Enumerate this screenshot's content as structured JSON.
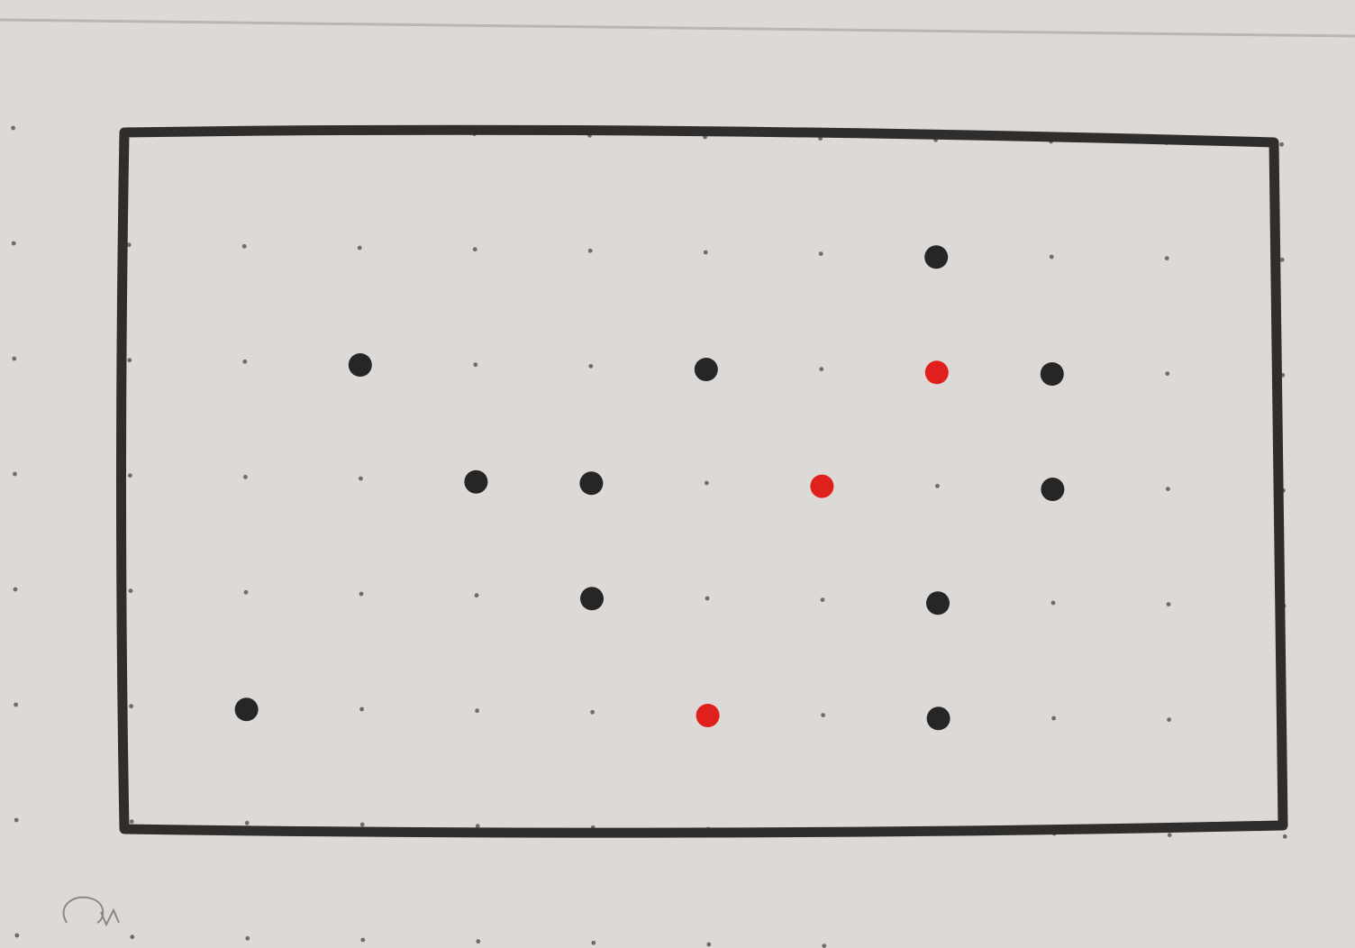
{
  "paper": {
    "color": "#dcd9d7",
    "grid_dot_color": "#6f6c6b",
    "frame_color": "#2f2e2c",
    "top_edge_line_color": "#b9b6b4"
  },
  "puzzle": {
    "grid": {
      "columns": 9,
      "rows": 5
    },
    "markers": [
      {
        "col": 8,
        "row": 1,
        "color": "black"
      },
      {
        "col": 3,
        "row": 2,
        "color": "black"
      },
      {
        "col": 6,
        "row": 2,
        "color": "black"
      },
      {
        "col": 8,
        "row": 2,
        "color": "red"
      },
      {
        "col": 9,
        "row": 2,
        "color": "black"
      },
      {
        "col": 4,
        "row": 3,
        "color": "black"
      },
      {
        "col": 5,
        "row": 3,
        "color": "black"
      },
      {
        "col": 7,
        "row": 3,
        "color": "red"
      },
      {
        "col": 9,
        "row": 3,
        "color": "black"
      },
      {
        "col": 5,
        "row": 4,
        "color": "black"
      },
      {
        "col": 8,
        "row": 4,
        "color": "black"
      },
      {
        "col": 2,
        "row": 5,
        "color": "black"
      },
      {
        "col": 6,
        "row": 5,
        "color": "red"
      },
      {
        "col": 8,
        "row": 5,
        "color": "black"
      }
    ],
    "marker_colors": {
      "black": "#262626",
      "red": "#e0201c"
    }
  }
}
